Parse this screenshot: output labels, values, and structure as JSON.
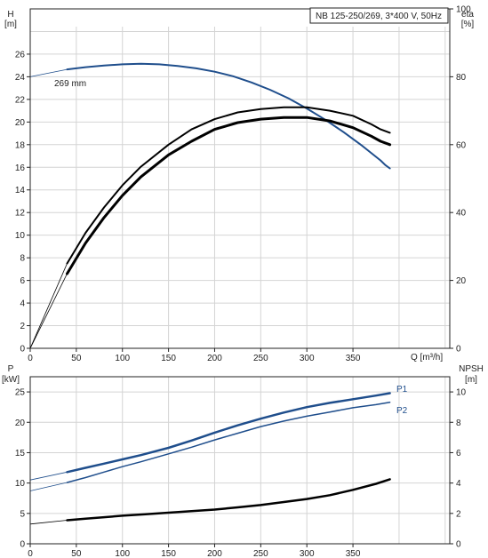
{
  "legend_box": {
    "text": "NB 125-250/269, 3*400 V, 50Hz"
  },
  "chart_data": [
    {
      "type": "line",
      "panel": "top",
      "x_axis": {
        "label": "Q [m³/h]",
        "range": [
          0,
          455
        ],
        "ticks": [
          0,
          50,
          100,
          150,
          200,
          250,
          300,
          350
        ]
      },
      "y_left": {
        "label_line1": "H",
        "label_line2": "[m]",
        "range": [
          0,
          30
        ],
        "ticks": [
          0,
          2,
          4,
          6,
          8,
          10,
          12,
          14,
          16,
          18,
          20,
          22,
          24,
          26
        ]
      },
      "y_right": {
        "label_line1": "eta",
        "label_line2": "[%]",
        "range": [
          0,
          100
        ],
        "ticks": [
          0,
          20,
          40,
          60,
          80,
          100
        ]
      },
      "grid": true,
      "annotation": "269 mm",
      "series": [
        {
          "axis": "left",
          "color": "#1f4e8c",
          "width": 2,
          "points": [
            [
              0,
              24.0
            ],
            [
              40,
              24.65
            ],
            [
              60,
              24.85
            ],
            [
              80,
              25.0
            ],
            [
              100,
              25.1
            ],
            [
              120,
              25.15
            ],
            [
              140,
              25.1
            ],
            [
              160,
              24.95
            ],
            [
              180,
              24.75
            ],
            [
              200,
              24.45
            ],
            [
              220,
              24.05
            ],
            [
              240,
              23.5
            ],
            [
              260,
              22.85
            ],
            [
              280,
              22.1
            ],
            [
              300,
              21.2
            ],
            [
              320,
              20.2
            ],
            [
              340,
              19.1
            ],
            [
              360,
              17.9
            ],
            [
              380,
              16.6
            ],
            [
              385,
              16.2
            ],
            [
              390,
              15.9
            ]
          ]
        },
        {
          "axis": "right",
          "color": "#000000",
          "width": 3,
          "points": [
            [
              0,
              0
            ],
            [
              40,
              22
            ],
            [
              60,
              31
            ],
            [
              80,
              38.5
            ],
            [
              100,
              45
            ],
            [
              120,
              50.5
            ],
            [
              150,
              57
            ],
            [
              175,
              61
            ],
            [
              200,
              64.5
            ],
            [
              225,
              66.5
            ],
            [
              250,
              67.5
            ],
            [
              275,
              68
            ],
            [
              300,
              68
            ],
            [
              325,
              67
            ],
            [
              350,
              65
            ],
            [
              370,
              62.5
            ],
            [
              380,
              61
            ],
            [
              390,
              60
            ]
          ]
        },
        {
          "axis": "right",
          "color": "#000000",
          "width": 2,
          "points": [
            [
              0,
              0
            ],
            [
              40,
              25
            ],
            [
              60,
              34
            ],
            [
              80,
              41.5
            ],
            [
              100,
              48
            ],
            [
              120,
              53.5
            ],
            [
              150,
              60
            ],
            [
              175,
              64.5
            ],
            [
              200,
              67.5
            ],
            [
              225,
              69.5
            ],
            [
              250,
              70.5
            ],
            [
              275,
              71
            ],
            [
              300,
              71
            ],
            [
              325,
              70
            ],
            [
              350,
              68.5
            ],
            [
              370,
              66
            ],
            [
              380,
              64.5
            ],
            [
              390,
              63.5
            ]
          ]
        }
      ]
    },
    {
      "type": "line",
      "panel": "bottom",
      "x_axis": {
        "range": [
          0,
          455
        ],
        "ticks": [
          0,
          50,
          100,
          150,
          200,
          250,
          300,
          350
        ]
      },
      "y_left": {
        "label_line1": "P",
        "label_line2": "[kW]",
        "range": [
          0,
          27.5
        ],
        "ticks": [
          0,
          5,
          10,
          15,
          20,
          25
        ]
      },
      "y_right": {
        "label_line1": "NPSH",
        "label_line2": "[m]",
        "range": [
          0,
          11
        ],
        "ticks": [
          0,
          2,
          4,
          6,
          8,
          10
        ]
      },
      "grid": true,
      "series": [
        {
          "name": "P1",
          "axis": "left",
          "color": "#1f4e8c",
          "width": 2.5,
          "points": [
            [
              0,
              10.5
            ],
            [
              40,
              11.8
            ],
            [
              60,
              12.5
            ],
            [
              80,
              13.2
            ],
            [
              100,
              13.9
            ],
            [
              120,
              14.6
            ],
            [
              150,
              15.8
            ],
            [
              175,
              17.0
            ],
            [
              200,
              18.3
            ],
            [
              225,
              19.5
            ],
            [
              250,
              20.6
            ],
            [
              275,
              21.6
            ],
            [
              300,
              22.5
            ],
            [
              325,
              23.2
            ],
            [
              350,
              23.8
            ],
            [
              375,
              24.4
            ],
            [
              390,
              24.8
            ]
          ]
        },
        {
          "name": "P2",
          "axis": "left",
          "color": "#1f4e8c",
          "width": 1.5,
          "points": [
            [
              0,
              8.7
            ],
            [
              40,
              10.1
            ],
            [
              60,
              10.9
            ],
            [
              80,
              11.8
            ],
            [
              100,
              12.7
            ],
            [
              120,
              13.5
            ],
            [
              150,
              14.8
            ],
            [
              175,
              15.9
            ],
            [
              200,
              17.1
            ],
            [
              225,
              18.2
            ],
            [
              250,
              19.3
            ],
            [
              275,
              20.2
            ],
            [
              300,
              21.0
            ],
            [
              325,
              21.7
            ],
            [
              350,
              22.4
            ],
            [
              375,
              22.9
            ],
            [
              390,
              23.3
            ]
          ]
        },
        {
          "axis": "right",
          "color": "#000000",
          "width": 2.5,
          "points": [
            [
              0,
              1.3
            ],
            [
              40,
              1.55
            ],
            [
              60,
              1.65
            ],
            [
              80,
              1.75
            ],
            [
              100,
              1.85
            ],
            [
              125,
              1.95
            ],
            [
              150,
              2.05
            ],
            [
              175,
              2.15
            ],
            [
              200,
              2.25
            ],
            [
              225,
              2.4
            ],
            [
              250,
              2.55
            ],
            [
              275,
              2.75
            ],
            [
              300,
              2.95
            ],
            [
              325,
              3.2
            ],
            [
              350,
              3.55
            ],
            [
              375,
              3.95
            ],
            [
              390,
              4.25
            ]
          ]
        }
      ]
    }
  ]
}
